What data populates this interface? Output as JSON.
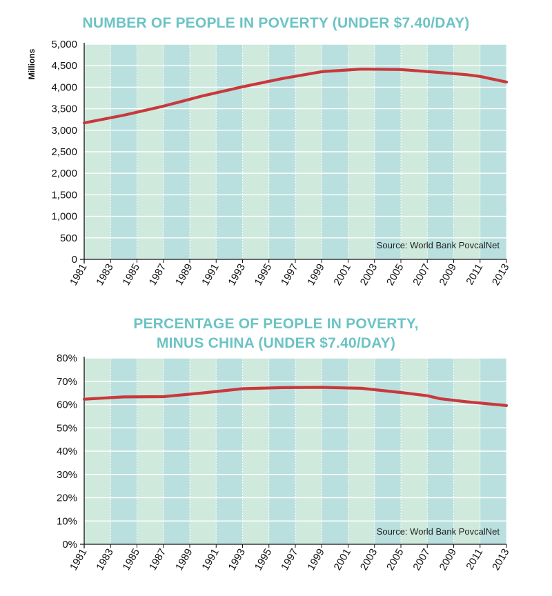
{
  "chart_data": [
    {
      "type": "line",
      "title": "NUMBER OF PEOPLE IN POVERTY (UNDER $7.40/DAY)",
      "ylabel": "Millions",
      "xlabel": "",
      "source": "Source: World Bank PovcalNet",
      "x_ticks": [
        "1981",
        "1983",
        "1985",
        "1987",
        "1989",
        "1991",
        "1993",
        "1995",
        "1997",
        "1999",
        "2001",
        "2003",
        "2005",
        "2007",
        "2009",
        "2011",
        "2013"
      ],
      "y_ticks": [
        "5,000",
        "4,500",
        "4,000",
        "3,500",
        "3,000",
        "2,500",
        "2,000",
        "1,500",
        "1,000",
        "500",
        "0"
      ],
      "ylim": [
        0,
        5000
      ],
      "xlim": [
        1981,
        2013
      ],
      "grid": true,
      "series": [
        {
          "color": "#c9383c",
          "x": [
            1981,
            1984,
            1987,
            1990,
            1993,
            1996,
            1999,
            2002,
            2005,
            2008,
            2010,
            2011,
            2013
          ],
          "y": [
            3170,
            3350,
            3560,
            3800,
            4010,
            4200,
            4360,
            4420,
            4410,
            4340,
            4290,
            4250,
            4120
          ]
        }
      ]
    },
    {
      "type": "line",
      "title": "PERCENTAGE OF PEOPLE IN POVERTY, MINUS CHINA (UNDER $7.40/DAY)",
      "title_lines": [
        "PERCENTAGE OF PEOPLE IN POVERTY,",
        "MINUS CHINA (UNDER $7.40/DAY)"
      ],
      "ylabel": "",
      "xlabel": "",
      "source": "Source: World Bank PovcalNet",
      "x_ticks": [
        "1981",
        "1983",
        "1985",
        "1987",
        "1989",
        "1991",
        "1993",
        "1995",
        "1997",
        "1999",
        "2001",
        "2003",
        "2005",
        "2007",
        "2009",
        "2011",
        "2013"
      ],
      "y_ticks": [
        "80%",
        "70%",
        "60%",
        "50%",
        "40%",
        "30%",
        "20%",
        "10%",
        "0%"
      ],
      "ylim": [
        0,
        80
      ],
      "xlim": [
        1981,
        2013
      ],
      "grid": true,
      "series": [
        {
          "color": "#c9383c",
          "x": [
            1981,
            1984,
            1987,
            1990,
            1993,
            1996,
            1999,
            2002,
            2005,
            2007,
            2008,
            2010,
            2013
          ],
          "y": [
            62.3,
            63.3,
            63.4,
            65.0,
            66.8,
            67.3,
            67.4,
            67.0,
            65.2,
            63.8,
            62.5,
            61.2,
            59.6
          ]
        }
      ]
    }
  ]
}
